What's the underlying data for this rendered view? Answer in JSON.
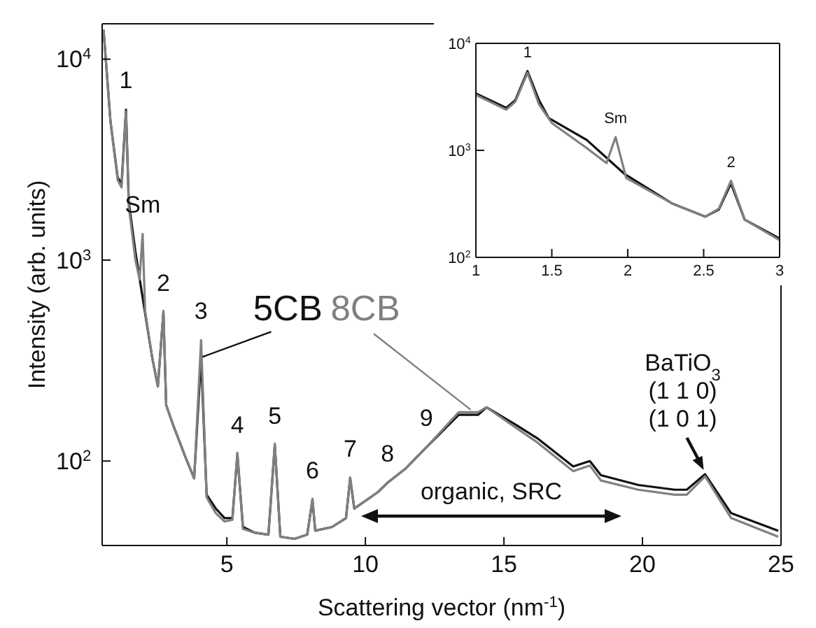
{
  "chart_data": [
    {
      "type": "line",
      "xlabel": "Scattering vector (nm$^{-1}$)",
      "ylabel": "Intensity (arb. units)",
      "log": "y",
      "legend": false,
      "xlim": [
        0.5,
        25
      ],
      "xticks": [
        5,
        10,
        15,
        20,
        25
      ],
      "ylim": [
        38,
        15000
      ],
      "yticks": [
        {
          "value": 100,
          "label": "10$^{2}$"
        },
        {
          "value": 1000,
          "label": "10$^{3}$"
        },
        {
          "value": 10000,
          "label": "10$^{4}$"
        }
      ],
      "series": [
        {
          "name": "5CB",
          "color": "#111111",
          "x": [
            0.55,
            0.8,
            1.06,
            1.2,
            1.36,
            1.46,
            1.7,
            2.0,
            2.3,
            2.51,
            2.71,
            2.81,
            3.07,
            3.5,
            3.82,
            4.07,
            4.27,
            4.6,
            4.92,
            5.2,
            5.38,
            5.58,
            6.0,
            6.5,
            6.73,
            6.93,
            7.44,
            7.9,
            8.09,
            8.19,
            8.8,
            9.3,
            9.45,
            9.6,
            10.45,
            10.8,
            11.46,
            12.2,
            13.37,
            14.07,
            14.37,
            15.48,
            16.2,
            17.5,
            18.1,
            18.5,
            19.85,
            21.16,
            21.6,
            22.26,
            23.2,
            24.9
          ],
          "values": [
            14000,
            4900,
            2570,
            2400,
            5600,
            1950,
            1100,
            600,
            330,
            235,
            550,
            190,
            150,
            105,
            82,
            330,
            68,
            58,
            52,
            52,
            108,
            47,
            44,
            43,
            120,
            42,
            41,
            43,
            64,
            45,
            47,
            52,
            82,
            58,
            70,
            78,
            92,
            117,
            170,
            170,
            185,
            150,
            130,
            94,
            100,
            85,
            76,
            72,
            72,
            86,
            55,
            45
          ]
        },
        {
          "name": "8CB",
          "color": "#808080",
          "x": [
            0.55,
            0.8,
            1.06,
            1.2,
            1.36,
            1.46,
            1.7,
            1.85,
            1.96,
            2.05,
            2.3,
            2.51,
            2.71,
            2.81,
            3.07,
            3.5,
            3.82,
            4.07,
            4.27,
            4.6,
            4.92,
            5.2,
            5.38,
            5.58,
            6.0,
            6.5,
            6.73,
            6.93,
            7.44,
            7.9,
            8.09,
            8.19,
            8.8,
            9.3,
            9.45,
            9.6,
            10.45,
            10.8,
            11.46,
            12.2,
            13.37,
            14.07,
            14.37,
            15.48,
            16.2,
            17.5,
            18.1,
            18.5,
            19.85,
            21.16,
            21.6,
            22.26,
            23.2,
            24.9
          ],
          "values": [
            14000,
            4900,
            2500,
            2300,
            5500,
            1850,
            1000,
            800,
            1350,
            560,
            330,
            235,
            560,
            190,
            150,
            105,
            82,
            400,
            66,
            55,
            50,
            51,
            110,
            46,
            44,
            43,
            122,
            42,
            41,
            43,
            65,
            45,
            47,
            52,
            83,
            58,
            70,
            78,
            92,
            117,
            175,
            175,
            185,
            145,
            124,
            89,
            95,
            80,
            72,
            68,
            68,
            84,
            52,
            42
          ]
        }
      ],
      "annotations": [
        {
          "text": "1",
          "x": 1.36,
          "y": 5600
        },
        {
          "text": "Sm",
          "x": 1.96,
          "y": 1350
        },
        {
          "text": "2",
          "x": 2.71,
          "y": 550
        },
        {
          "text": "3",
          "x": 4.07,
          "y": 400
        },
        {
          "text": "4",
          "x": 5.38,
          "y": 108
        },
        {
          "text": "5",
          "x": 6.73,
          "y": 120
        },
        {
          "text": "6",
          "x": 8.09,
          "y": 64
        },
        {
          "text": "7",
          "x": 9.45,
          "y": 82
        },
        {
          "text": "8",
          "x": 10.8,
          "y": 78
        },
        {
          "text": "9",
          "x": 12.2,
          "y": 117
        },
        {
          "text": "BaTiO$_{3}$\n(1 1 0)\n(1 0 1)",
          "x": 22.26,
          "y": 86
        },
        "organic, SRC"
      ]
    },
    {
      "type": "line",
      "log": "y",
      "xlim": [
        1,
        3
      ],
      "xticks": [
        1,
        1.5,
        2,
        2.5,
        3
      ],
      "ylim": [
        100,
        10000
      ],
      "yticks": [
        {
          "value": 100,
          "label": "10$^{2}$"
        },
        {
          "value": 1000,
          "label": "10$^{3}$"
        },
        {
          "value": 10000,
          "label": "10$^{4}$"
        }
      ],
      "series": [
        {
          "color": "#111111",
          "x": [
            1,
            1.2,
            1.26,
            1.34,
            1.415,
            1.48,
            1.73,
            1.98,
            2.29,
            2.51,
            2.6,
            2.68,
            2.77,
            3
          ],
          "values": [
            3400,
            2500,
            2950,
            5500,
            2950,
            2000,
            1250,
            600,
            320,
            240,
            280,
            490,
            225,
            150
          ]
        },
        {
          "color": "#808080",
          "x": [
            1,
            1.2,
            1.26,
            1.34,
            1.415,
            1.5,
            1.73,
            1.86,
            1.92,
            1.99,
            2.29,
            2.51,
            2.6,
            2.68,
            2.77,
            3
          ],
          "values": [
            3300,
            2400,
            2850,
            5300,
            2700,
            1800,
            1050,
            760,
            1330,
            550,
            320,
            240,
            285,
            520,
            225,
            145
          ]
        }
      ],
      "annotations": [
        {
          "text": "1",
          "x": 1.34,
          "y": 5500
        },
        {
          "text": "Sm",
          "x": 1.92,
          "y": 1330
        },
        {
          "text": "2",
          "x": 2.68,
          "y": 520
        }
      ]
    }
  ]
}
